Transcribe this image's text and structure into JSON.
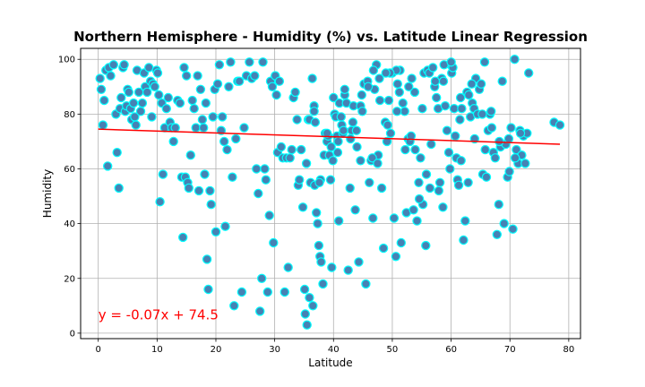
{
  "chart_data": {
    "type": "scatter",
    "title": "Northern Hemisphere - Humidity (%) vs. Latitude Linear Regression",
    "xlabel": "Latitude",
    "ylabel": "Humidity",
    "xlim": [
      -3,
      82
    ],
    "ylim": [
      -2,
      104
    ],
    "xticks": [
      0,
      10,
      20,
      30,
      40,
      50,
      60,
      70,
      80
    ],
    "yticks": [
      0,
      20,
      40,
      60,
      80,
      100
    ],
    "grid": true,
    "marker_color": "#4682b4",
    "marker_edge_color": "#00ffff",
    "regression": {
      "slope": -0.07,
      "intercept": 74.5,
      "x_range": [
        0.0,
        78.5
      ],
      "color": "#ff0000",
      "equation_label": "y = -0.07x + 74.5",
      "label_color": "#ff0000",
      "label_anchor_data": [
        0.0,
        5.0
      ]
    },
    "points": [
      [
        0.3,
        93
      ],
      [
        0.5,
        89
      ],
      [
        0.8,
        76
      ],
      [
        1.0,
        85
      ],
      [
        1.3,
        96
      ],
      [
        1.6,
        61
      ],
      [
        1.8,
        97
      ],
      [
        2.1,
        94
      ],
      [
        2.6,
        98
      ],
      [
        3.0,
        80
      ],
      [
        3.2,
        66
      ],
      [
        3.5,
        53
      ],
      [
        3.7,
        82
      ],
      [
        3.9,
        86
      ],
      [
        4.2,
        97
      ],
      [
        4.4,
        98
      ],
      [
        4.6,
        81
      ],
      [
        4.8,
        83
      ],
      [
        5.0,
        89
      ],
      [
        5.2,
        88
      ],
      [
        5.5,
        82
      ],
      [
        5.7,
        78
      ],
      [
        6.0,
        84
      ],
      [
        6.2,
        79
      ],
      [
        6.4,
        76
      ],
      [
        6.6,
        96
      ],
      [
        6.9,
        88
      ],
      [
        7.2,
        81
      ],
      [
        7.5,
        84
      ],
      [
        7.8,
        95
      ],
      [
        8.0,
        90
      ],
      [
        8.3,
        88
      ],
      [
        8.6,
        97
      ],
      [
        8.9,
        92
      ],
      [
        9.1,
        79
      ],
      [
        9.3,
        91
      ],
      [
        9.6,
        90
      ],
      [
        9.9,
        96
      ],
      [
        10.1,
        95
      ],
      [
        10.3,
        87
      ],
      [
        10.5,
        48
      ],
      [
        10.8,
        84
      ],
      [
        11.0,
        58
      ],
      [
        11.3,
        75
      ],
      [
        11.6,
        82
      ],
      [
        11.9,
        86
      ],
      [
        12.2,
        77
      ],
      [
        12.5,
        75
      ],
      [
        12.8,
        70
      ],
      [
        13.1,
        75
      ],
      [
        13.5,
        85
      ],
      [
        13.9,
        84
      ],
      [
        14.2,
        57
      ],
      [
        14.4,
        35
      ],
      [
        14.6,
        97
      ],
      [
        14.8,
        57
      ],
      [
        15.0,
        94
      ],
      [
        15.2,
        55
      ],
      [
        15.4,
        53
      ],
      [
        15.7,
        65
      ],
      [
        16.0,
        85
      ],
      [
        16.3,
        82
      ],
      [
        16.6,
        75
      ],
      [
        16.9,
        94
      ],
      [
        17.1,
        52
      ],
      [
        17.4,
        89
      ],
      [
        17.7,
        78
      ],
      [
        17.9,
        75
      ],
      [
        18.1,
        58
      ],
      [
        18.3,
        84
      ],
      [
        18.5,
        27
      ],
      [
        18.7,
        16
      ],
      [
        19.0,
        52
      ],
      [
        19.2,
        47
      ],
      [
        19.5,
        79
      ],
      [
        19.8,
        89
      ],
      [
        20.0,
        37
      ],
      [
        20.3,
        91
      ],
      [
        20.6,
        98
      ],
      [
        20.9,
        74
      ],
      [
        21.1,
        79
      ],
      [
        21.4,
        70
      ],
      [
        21.6,
        39
      ],
      [
        21.9,
        67
      ],
      [
        22.2,
        90
      ],
      [
        22.5,
        99
      ],
      [
        22.8,
        57
      ],
      [
        23.1,
        10
      ],
      [
        23.4,
        71
      ],
      [
        23.7,
        92
      ],
      [
        24.0,
        92
      ],
      [
        24.4,
        15
      ],
      [
        24.8,
        75
      ],
      [
        25.2,
        94
      ],
      [
        25.7,
        99
      ],
      [
        26.1,
        93
      ],
      [
        26.6,
        94
      ],
      [
        26.9,
        60
      ],
      [
        27.2,
        51
      ],
      [
        27.5,
        8
      ],
      [
        27.8,
        20
      ],
      [
        28.0,
        99
      ],
      [
        28.3,
        60
      ],
      [
        28.5,
        56
      ],
      [
        28.8,
        15
      ],
      [
        29.1,
        43
      ],
      [
        29.3,
        92
      ],
      [
        29.6,
        90
      ],
      [
        29.8,
        33
      ],
      [
        30.1,
        94
      ],
      [
        30.3,
        87
      ],
      [
        30.5,
        66
      ],
      [
        30.8,
        92
      ],
      [
        31.1,
        68
      ],
      [
        31.4,
        64
      ],
      [
        31.7,
        15
      ],
      [
        32.0,
        64
      ],
      [
        32.3,
        24
      ],
      [
        32.6,
        64
      ],
      [
        32.9,
        67
      ],
      [
        33.2,
        86
      ],
      [
        33.5,
        88
      ],
      [
        33.8,
        78
      ],
      [
        34.0,
        54
      ],
      [
        34.2,
        56
      ],
      [
        34.5,
        67
      ],
      [
        34.8,
        46
      ],
      [
        35.1,
        16
      ],
      [
        35.4,
        62
      ],
      [
        35.7,
        78
      ],
      [
        35.9,
        78
      ],
      [
        36.1,
        55
      ],
      [
        36.4,
        93
      ],
      [
        36.7,
        83
      ],
      [
        36.9,
        77
      ],
      [
        37.1,
        44
      ],
      [
        37.3,
        40
      ],
      [
        37.5,
        32
      ],
      [
        37.7,
        28
      ],
      [
        37.9,
        26
      ],
      [
        38.2,
        18
      ],
      [
        38.4,
        65
      ],
      [
        38.6,
        73
      ],
      [
        38.9,
        70
      ],
      [
        39.1,
        72
      ],
      [
        39.3,
        65
      ],
      [
        39.5,
        56
      ],
      [
        39.7,
        24
      ],
      [
        40.0,
        86
      ],
      [
        40.2,
        80
      ],
      [
        40.4,
        79
      ],
      [
        40.6,
        72
      ],
      [
        40.8,
        70
      ],
      [
        41.0,
        84
      ],
      [
        41.3,
        79
      ],
      [
        41.6,
        73
      ],
      [
        41.9,
        87
      ],
      [
        42.2,
        84
      ],
      [
        42.5,
        23
      ],
      [
        42.8,
        53
      ],
      [
        43.1,
        74
      ],
      [
        43.4,
        83
      ],
      [
        43.7,
        45
      ],
      [
        44.0,
        68
      ],
      [
        44.3,
        26
      ],
      [
        44.6,
        83
      ],
      [
        44.9,
        81
      ],
      [
        45.2,
        91
      ],
      [
        45.5,
        18
      ],
      [
        45.8,
        92
      ],
      [
        46.1,
        55
      ],
      [
        46.4,
        63
      ],
      [
        46.7,
        42
      ],
      [
        47.0,
        89
      ],
      [
        47.3,
        98
      ],
      [
        47.6,
        65
      ],
      [
        47.9,
        85
      ],
      [
        48.2,
        53
      ],
      [
        48.5,
        31
      ],
      [
        48.8,
        77
      ],
      [
        49.1,
        70
      ],
      [
        49.4,
        85
      ],
      [
        49.7,
        73
      ],
      [
        50.0,
        95
      ],
      [
        50.3,
        42
      ],
      [
        50.6,
        28
      ],
      [
        50.9,
        91
      ],
      [
        51.2,
        88
      ],
      [
        51.5,
        33
      ],
      [
        51.8,
        84
      ],
      [
        52.1,
        81
      ],
      [
        52.4,
        44
      ],
      [
        52.7,
        71
      ],
      [
        53.0,
        70
      ],
      [
        53.3,
        93
      ],
      [
        53.6,
        45
      ],
      [
        53.9,
        67
      ],
      [
        54.2,
        41
      ],
      [
        54.5,
        55
      ],
      [
        54.8,
        64
      ],
      [
        55.1,
        82
      ],
      [
        55.4,
        95
      ],
      [
        55.7,
        32
      ],
      [
        56.0,
        96
      ],
      [
        56.3,
        95
      ],
      [
        56.6,
        69
      ],
      [
        56.9,
        97
      ],
      [
        57.2,
        90
      ],
      [
        57.5,
        86
      ],
      [
        57.8,
        82
      ],
      [
        58.1,
        55
      ],
      [
        58.4,
        93
      ],
      [
        58.7,
        92
      ],
      [
        59.0,
        83
      ],
      [
        59.3,
        74
      ],
      [
        59.6,
        66
      ],
      [
        59.9,
        98
      ],
      [
        60.1,
        95
      ],
      [
        60.3,
        97
      ],
      [
        60.5,
        82
      ],
      [
        60.7,
        72
      ],
      [
        60.9,
        64
      ],
      [
        61.1,
        56
      ],
      [
        61.3,
        54
      ],
      [
        61.5,
        78
      ],
      [
        61.8,
        82
      ],
      [
        62.1,
        34
      ],
      [
        62.4,
        41
      ],
      [
        62.7,
        88
      ],
      [
        63.0,
        87
      ],
      [
        63.3,
        79
      ],
      [
        63.6,
        84
      ],
      [
        63.9,
        82
      ],
      [
        64.2,
        93
      ],
      [
        64.5,
        80
      ],
      [
        64.8,
        89
      ],
      [
        65.1,
        91
      ],
      [
        65.4,
        58
      ],
      [
        65.7,
        99
      ],
      [
        66.0,
        57
      ],
      [
        66.3,
        74
      ],
      [
        66.6,
        80
      ],
      [
        66.9,
        75
      ],
      [
        67.2,
        66
      ],
      [
        67.5,
        64
      ],
      [
        67.8,
        36
      ],
      [
        68.1,
        47
      ],
      [
        68.4,
        68
      ],
      [
        68.7,
        92
      ],
      [
        69.0,
        40
      ],
      [
        69.3,
        69
      ],
      [
        69.6,
        57
      ],
      [
        69.9,
        59
      ],
      [
        70.2,
        75
      ],
      [
        70.5,
        38
      ],
      [
        70.8,
        100
      ],
      [
        71.1,
        67
      ],
      [
        71.4,
        62
      ],
      [
        71.7,
        74
      ],
      [
        72.0,
        65
      ],
      [
        72.3,
        72
      ],
      [
        72.6,
        62
      ],
      [
        72.9,
        73
      ],
      [
        73.2,
        95
      ],
      [
        77.5,
        77
      ],
      [
        78.5,
        76
      ],
      [
        64.0,
        71
      ],
      [
        65.8,
        67
      ],
      [
        62.9,
        55
      ],
      [
        61.7,
        63
      ],
      [
        59.8,
        60
      ],
      [
        58.6,
        46
      ],
      [
        57.9,
        52
      ],
      [
        56.4,
        53
      ],
      [
        55.2,
        47
      ],
      [
        53.8,
        88
      ],
      [
        52.8,
        90
      ],
      [
        51.3,
        96
      ],
      [
        50.7,
        96
      ],
      [
        49.6,
        95
      ],
      [
        48.9,
        95
      ],
      [
        47.8,
        93
      ],
      [
        46.8,
        96
      ],
      [
        45.9,
        90
      ],
      [
        44.8,
        87
      ],
      [
        43.9,
        74
      ],
      [
        42.9,
        71
      ],
      [
        41.9,
        89
      ],
      [
        41.4,
        76
      ],
      [
        40.7,
        66
      ],
      [
        39.9,
        63
      ],
      [
        38.9,
        73
      ],
      [
        37.8,
        56
      ],
      [
        36.7,
        81
      ],
      [
        35.5,
        3
      ],
      [
        35.2,
        7
      ],
      [
        35.9,
        13
      ],
      [
        36.5,
        10
      ],
      [
        36.8,
        54
      ],
      [
        37.6,
        55
      ],
      [
        39.6,
        68
      ],
      [
        40.9,
        41
      ],
      [
        41.7,
        74
      ],
      [
        43.3,
        77
      ],
      [
        44.6,
        63
      ],
      [
        46.6,
        64
      ],
      [
        47.5,
        62
      ],
      [
        49.2,
        76
      ],
      [
        50.8,
        81
      ],
      [
        52.2,
        67
      ],
      [
        53.2,
        72
      ],
      [
        54.6,
        49
      ],
      [
        55.8,
        58
      ],
      [
        57.3,
        92
      ],
      [
        58.8,
        98
      ],
      [
        60.0,
        99
      ],
      [
        61.6,
        86
      ],
      [
        63.5,
        91
      ],
      [
        65.3,
        80
      ],
      [
        66.8,
        81
      ],
      [
        68.2,
        70
      ],
      [
        69.8,
        71
      ],
      [
        70.9,
        64
      ],
      [
        71.8,
        73
      ]
    ]
  }
}
